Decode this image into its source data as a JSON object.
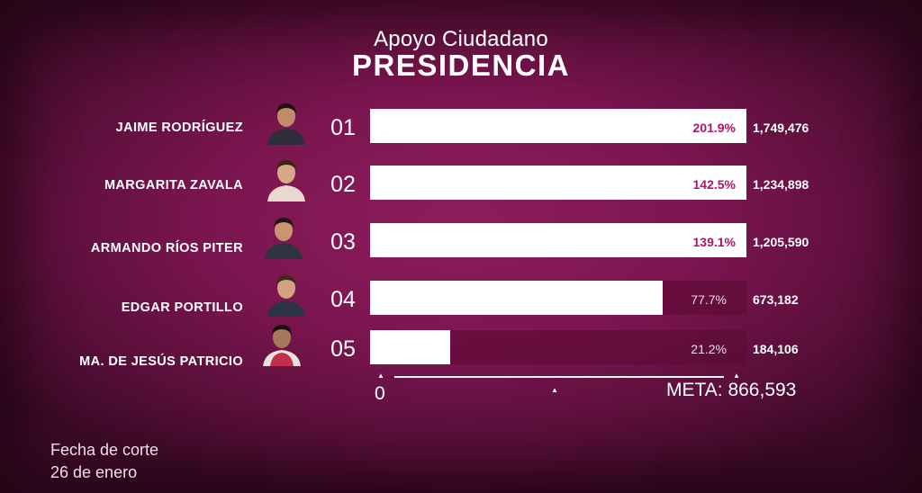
{
  "header": {
    "title_top": "Apoyo Ciudadano",
    "title_main": "PRESIDENCIA"
  },
  "chart_data": {
    "type": "bar",
    "orientation": "horizontal",
    "title": "Apoyo Ciudadano",
    "subtitle": "PRESIDENCIA",
    "categories": [
      "JAIME RODRÍGUEZ",
      "MARGARITA ZAVALA",
      "ARMANDO RÍOS PITER",
      "EDGAR PORTILLO",
      "MA. DE JESÚS PATRICIO"
    ],
    "ranks": [
      "01",
      "02",
      "03",
      "04",
      "05"
    ],
    "values": [
      1749476,
      1234898,
      1205590,
      673182,
      184106
    ],
    "value_labels": [
      "1,749,476",
      "1,234,898",
      "1,205,590",
      "673,182",
      "184,106"
    ],
    "percent_of_goal": [
      201.9,
      142.5,
      139.1,
      77.7,
      21.2
    ],
    "percent_labels": [
      "201.9%",
      "142.5%",
      "139.1%",
      "77.7%",
      "21.2%"
    ],
    "goal": 866593,
    "xlim": [
      0,
      866593
    ],
    "axis": {
      "zero_label": "0",
      "goal_label": "META: 866,593"
    }
  },
  "footer": {
    "line1": "Fecha de corte",
    "line2": "26 de enero"
  },
  "colors": {
    "background": "#7a154f",
    "bar_fill": "#ffffff",
    "bar_track": "#5a0a32",
    "percent_inside": "#b01466",
    "text": "#ffffff"
  }
}
